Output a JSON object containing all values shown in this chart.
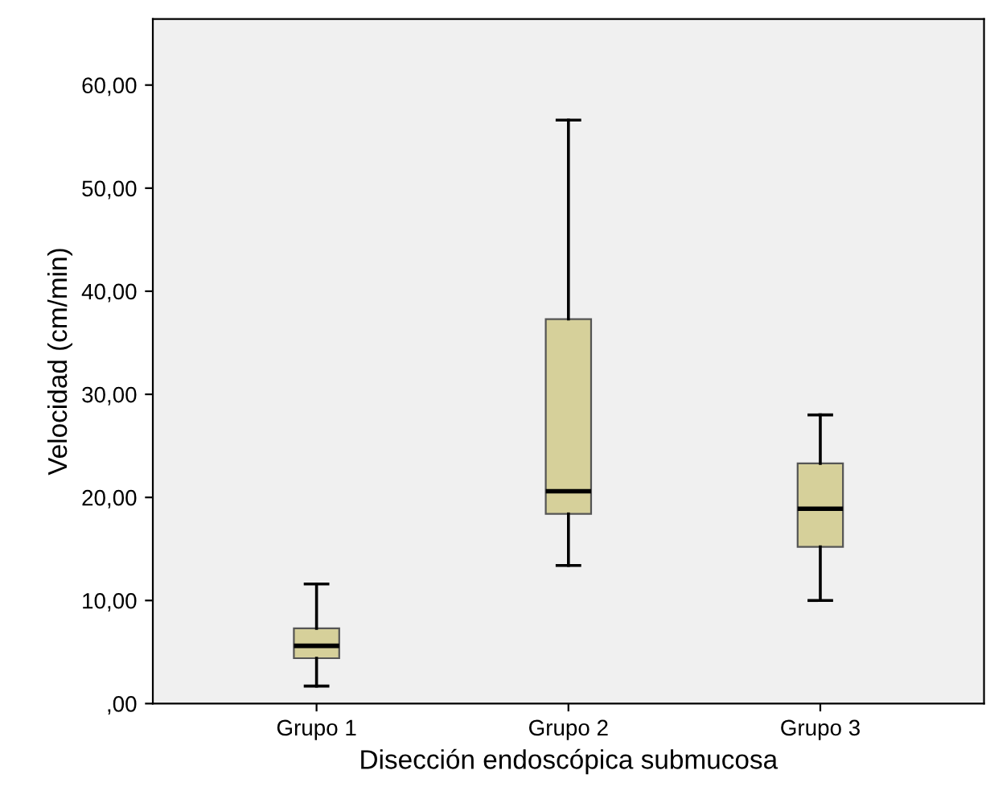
{
  "chart_data": {
    "type": "box",
    "xlabel": "Disección endoscópica submucosa",
    "ylabel": "Velocidad (cm/min)",
    "categories": [
      "Grupo 1",
      "Grupo 2",
      "Grupo 3"
    ],
    "boxes": [
      {
        "low": 1.7,
        "q1": 4.4,
        "median": 5.6,
        "q3": 7.3,
        "high": 11.6
      },
      {
        "low": 13.4,
        "q1": 18.4,
        "median": 20.6,
        "q3": 37.3,
        "high": 56.6
      },
      {
        "low": 10.0,
        "q1": 15.2,
        "median": 18.9,
        "q3": 23.3,
        "high": 28.0
      }
    ],
    "color": "#d6d09a",
    "ylim": [
      0,
      66.4
    ],
    "yticks": [
      {
        "value": 0,
        "label": ",00"
      },
      {
        "value": 10,
        "label": "10,00"
      },
      {
        "value": 20,
        "label": "20,00"
      },
      {
        "value": 30,
        "label": "30,00"
      },
      {
        "value": 40,
        "label": "40,00"
      },
      {
        "value": 50,
        "label": "50,00"
      },
      {
        "value": 60,
        "label": "60,00"
      }
    ],
    "grid": false
  }
}
